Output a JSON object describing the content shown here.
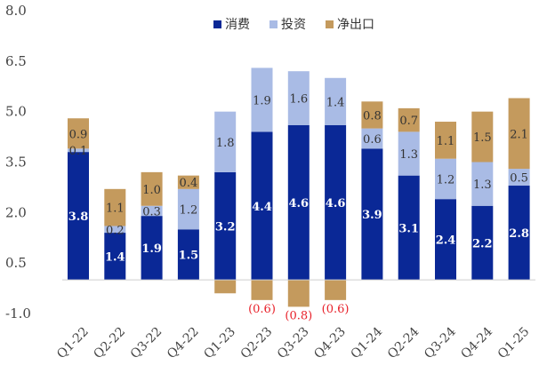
{
  "chart_data": {
    "type": "bar",
    "stacked": true,
    "categories": [
      "Q1-22",
      "Q2-22",
      "Q3-22",
      "Q4-22",
      "Q1-23",
      "Q2-23",
      "Q3-23",
      "Q4-23",
      "Q1-24",
      "Q2-24",
      "Q3-24",
      "Q4-24",
      "Q1-25"
    ],
    "series": [
      {
        "name": "消费",
        "color": "#0a2896",
        "values": [
          3.8,
          1.4,
          1.9,
          1.5,
          3.2,
          4.4,
          4.6,
          4.6,
          3.9,
          3.1,
          2.4,
          2.2,
          2.8
        ]
      },
      {
        "name": "投资",
        "color": "#a9bbe5",
        "values": [
          0.1,
          0.2,
          0.3,
          1.2,
          1.8,
          1.9,
          1.6,
          1.4,
          0.6,
          1.3,
          1.2,
          1.3,
          0.5
        ]
      },
      {
        "name": "净出口",
        "color": "#c49a5d",
        "values": [
          0.9,
          1.1,
          1.0,
          0.4,
          -0.4,
          -0.6,
          -0.8,
          -0.6,
          0.8,
          0.7,
          1.1,
          1.5,
          2.1
        ]
      }
    ],
    "data_labels": [
      [
        "3.8",
        "1.4",
        "1.9",
        "1.5",
        "3.2",
        "4.4",
        "4.6",
        "4.6",
        "3.9",
        "3.1",
        "2.4",
        "2.2",
        "2.8"
      ],
      [
        "0.1",
        "0.2",
        "0.3",
        "1.2",
        "1.8",
        "1.9",
        "1.6",
        "1.4",
        "0.6",
        "1.3",
        "1.2",
        "1.3",
        "0.5"
      ],
      [
        "0.9",
        "1.1",
        "1.0",
        "0.4",
        "",
        "(0.6)",
        "(0.8)",
        "(0.6)",
        "0.8",
        "0.7",
        "1.1",
        "1.5",
        "2.1"
      ]
    ],
    "yticks": [
      "8.0",
      "6.5",
      "5.0",
      "3.5",
      "2.0",
      "0.5",
      "-1.0"
    ],
    "ylim": [
      -1.0,
      8.0
    ],
    "grid": false,
    "legend_position": "top-center",
    "negative_label_color": "#e8212a",
    "title": "",
    "xlabel": "",
    "ylabel": ""
  }
}
